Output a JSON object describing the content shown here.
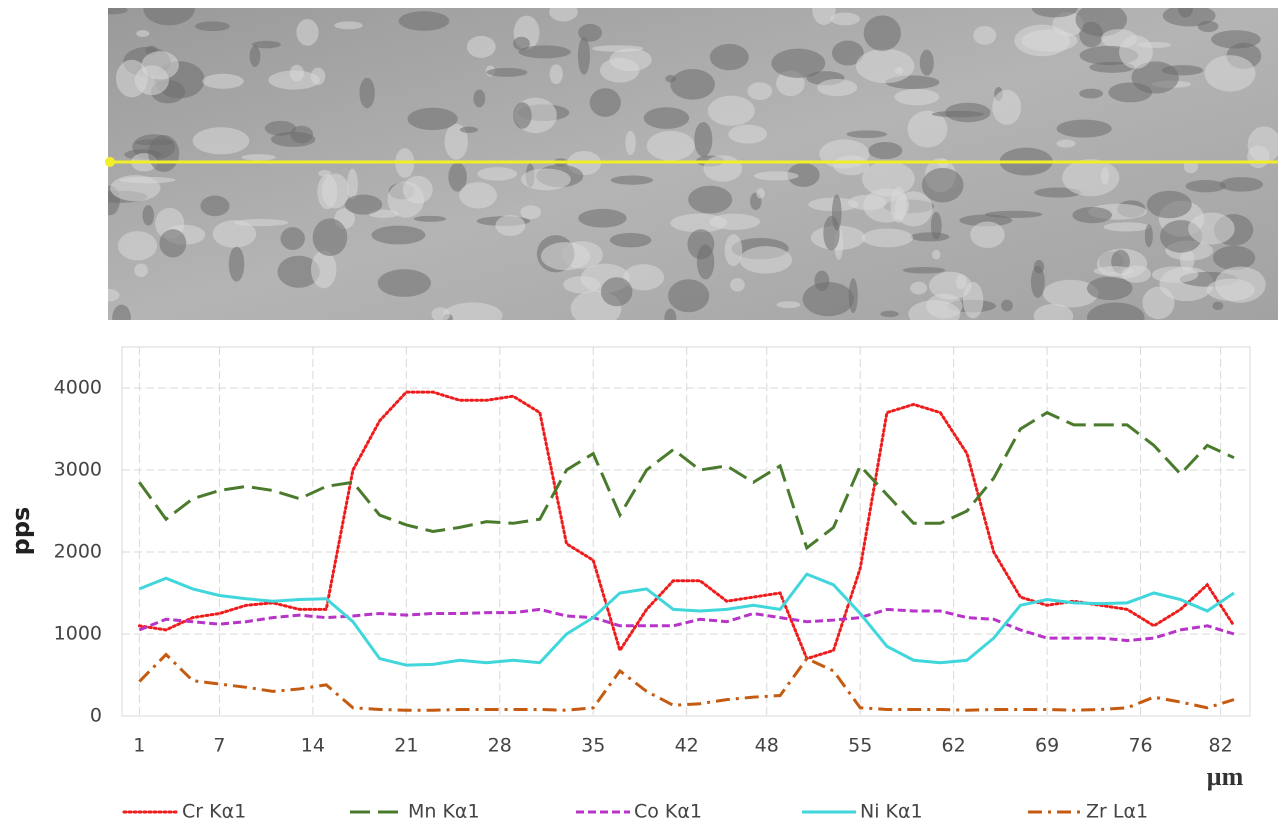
{
  "chart_data": {
    "type": "line",
    "ylabel": "pps",
    "xlabel": "µm",
    "x": [
      1,
      3,
      5,
      7,
      9,
      11,
      13,
      15,
      17,
      19,
      21,
      23,
      25,
      27,
      29,
      31,
      33,
      35,
      37,
      39,
      41,
      43,
      45,
      47,
      49,
      51,
      53,
      55,
      57,
      59,
      61,
      63,
      65,
      67,
      69,
      71,
      73,
      75,
      77,
      79,
      81,
      83
    ],
    "series": [
      {
        "name": "Cr Kα1",
        "color": "#ee1c1c",
        "dash": "dotted",
        "values": [
          1100,
          1050,
          1200,
          1250,
          1350,
          1380,
          1300,
          1300,
          3000,
          3600,
          3950,
          3950,
          3850,
          3850,
          3900,
          3700,
          2100,
          1900,
          800,
          1300,
          1650,
          1650,
          1400,
          1450,
          1500,
          700,
          800,
          1800,
          3700,
          3800,
          3700,
          3200,
          2000,
          1450,
          1350,
          1400,
          1350,
          1300,
          1100,
          1300,
          1600,
          1100
        ]
      },
      {
        "name": "Mn Kα1",
        "color": "#4a7b2c",
        "dash": "dashed",
        "values": [
          2850,
          2400,
          2650,
          2750,
          2800,
          2750,
          2650,
          2800,
          2850,
          2450,
          2330,
          2250,
          2300,
          2370,
          2350,
          2400,
          3000,
          3200,
          2450,
          3000,
          3250,
          3000,
          3050,
          2850,
          3050,
          2050,
          2300,
          3050,
          2700,
          2350,
          2350,
          2500,
          2900,
          3500,
          3700,
          3550,
          3550,
          3550,
          3300,
          2950,
          3300,
          3150
        ]
      },
      {
        "name": "Co Kα1",
        "color": "#b833c8",
        "dash": "short",
        "values": [
          1050,
          1180,
          1150,
          1120,
          1150,
          1200,
          1230,
          1200,
          1220,
          1250,
          1230,
          1250,
          1250,
          1260,
          1260,
          1300,
          1220,
          1200,
          1100,
          1100,
          1100,
          1180,
          1150,
          1250,
          1200,
          1150,
          1170,
          1200,
          1300,
          1280,
          1280,
          1200,
          1180,
          1050,
          950,
          950,
          950,
          920,
          950,
          1050,
          1100,
          1000
        ]
      },
      {
        "name": "Ni Kα1",
        "color": "#3fd6dc",
        "dash": "solid",
        "values": [
          1550,
          1680,
          1550,
          1470,
          1430,
          1400,
          1420,
          1430,
          1150,
          700,
          620,
          630,
          680,
          650,
          680,
          650,
          1000,
          1200,
          1500,
          1550,
          1300,
          1280,
          1300,
          1350,
          1300,
          1730,
          1600,
          1250,
          850,
          680,
          650,
          680,
          950,
          1350,
          1420,
          1380,
          1370,
          1380,
          1500,
          1420,
          1280,
          1500
        ]
      },
      {
        "name": "Zr Lα1",
        "color": "#c55a11",
        "dash": "dashdot",
        "values": [
          420,
          750,
          430,
          390,
          350,
          300,
          330,
          380,
          100,
          80,
          70,
          70,
          80,
          80,
          80,
          80,
          70,
          100,
          550,
          300,
          130,
          150,
          200,
          230,
          250,
          700,
          550,
          100,
          80,
          80,
          80,
          70,
          80,
          80,
          80,
          70,
          80,
          100,
          230,
          170,
          100,
          200
        ]
      }
    ],
    "xlim": [
      -0.3,
      84.2
    ],
    "ylim": [
      0,
      4500
    ],
    "xticks": [
      1,
      7,
      14,
      21,
      28,
      35,
      42,
      48,
      55,
      62,
      69,
      76,
      82
    ],
    "yticks": [
      0,
      1000,
      2000,
      3000,
      4000
    ],
    "grid": true,
    "legend": "bottom"
  }
}
